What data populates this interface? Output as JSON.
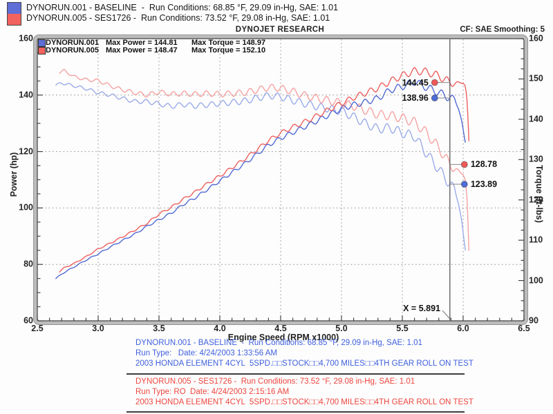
{
  "header": {
    "runs": [
      {
        "swatch_color": "#5e6ed6",
        "label": "DYNORUN.001 - BASELINE  -  Run Conditions: 68.85 °F, 29.09 in-Hg, SAE: 1.01"
      },
      {
        "swatch_color": "#f2625e",
        "label": "DYNORUN.005 - SES1726 -  Run Conditions: 73.52 °F, 29.08 in-Hg, SAE: 1.01"
      }
    ],
    "brand": "DYNOJET RESEARCH",
    "correction": "CF: SAE  Smoothing: 5"
  },
  "chart_data": {
    "type": "line",
    "title": "DYNOJET RESEARCH",
    "x_axis": {
      "label": "Engine Speed (RPM x1000)",
      "min": 2.5,
      "max": 6.5,
      "ticks": [
        "2.5",
        "3.0",
        "3.5",
        "4.0",
        "4.5",
        "5.0",
        "5.5",
        "6.0",
        "6.5"
      ],
      "minor_step": 0.1,
      "grid_step": 0.5
    },
    "y_left": {
      "label": "Power (hp)",
      "min": 60,
      "max": 160,
      "ticks": [
        "160",
        "140",
        "120",
        "100",
        "80",
        "60"
      ],
      "minor_step": 5,
      "grid_values": [
        140,
        120,
        100,
        80
      ]
    },
    "y_right": {
      "label": "Torque (ft-lbs)",
      "min": 90,
      "max": 160,
      "ticks": [
        "160",
        "150",
        "140",
        "130",
        "120",
        "110",
        "100",
        "90"
      ],
      "minor_step": 2.5
    },
    "legend": {
      "rows": [
        {
          "run": "DYNORUN.001",
          "max_power": "Max Power = 144.81",
          "max_torque": "Max Torque = 148.97",
          "swatch_color": "#5e6ed6"
        },
        {
          "run": "DYNORUN.005",
          "max_power": "Max Power = 148.47",
          "max_torque": "Max Torque = 152.10",
          "swatch_color": "#f2625e"
        }
      ]
    },
    "cursor": {
      "rpm": 5.891,
      "label": "X = 5.891"
    },
    "cursor_readouts": [
      {
        "label": "144.45",
        "value": 144.45,
        "axis": "power",
        "run": "DYNORUN.005",
        "color": "#ee5a5a",
        "side": "left"
      },
      {
        "label": "138.96",
        "value": 138.96,
        "axis": "power",
        "run": "DYNORUN.001",
        "color": "#4f6cd6",
        "side": "left"
      },
      {
        "label": "128.78",
        "value": 128.78,
        "axis": "torque",
        "run": "DYNORUN.005",
        "color": "#ee5a5a",
        "side": "right"
      },
      {
        "label": "123.89",
        "value": 123.89,
        "axis": "torque",
        "run": "DYNORUN.001",
        "color": "#4f6cd6",
        "side": "right"
      }
    ],
    "series": [
      {
        "id": "torque_baseline",
        "run": "DYNORUN.001",
        "quantity": "torque",
        "axis": "right",
        "color": "#9aabe8",
        "points": [
          [
            2.65,
            148.4
          ],
          [
            2.7,
            149.0
          ],
          [
            2.8,
            148.3
          ],
          [
            2.9,
            147.6
          ],
          [
            3.0,
            146.6
          ],
          [
            3.1,
            146.0
          ],
          [
            3.2,
            145.2
          ],
          [
            3.3,
            144.4
          ],
          [
            3.4,
            144.4
          ],
          [
            3.5,
            143.8
          ],
          [
            3.6,
            143.2
          ],
          [
            3.7,
            143.7
          ],
          [
            3.8,
            143.3
          ],
          [
            3.9,
            143.6
          ],
          [
            4.0,
            143.9
          ],
          [
            4.1,
            144.2
          ],
          [
            4.2,
            144.5
          ],
          [
            4.3,
            145.2
          ],
          [
            4.4,
            145.9
          ],
          [
            4.5,
            145.6
          ],
          [
            4.6,
            144.7
          ],
          [
            4.7,
            143.9
          ],
          [
            4.8,
            143.2
          ],
          [
            4.9,
            142.6
          ],
          [
            5.0,
            142.0
          ],
          [
            5.1,
            140.6
          ],
          [
            5.2,
            138.9
          ],
          [
            5.3,
            137.6
          ],
          [
            5.4,
            137.9
          ],
          [
            5.5,
            136.6
          ],
          [
            5.6,
            135.8
          ],
          [
            5.7,
            131.5
          ],
          [
            5.8,
            127.6
          ],
          [
            5.891,
            123.89
          ],
          [
            5.93,
            122.6
          ],
          [
            5.96,
            119.8
          ],
          [
            5.99,
            114.5
          ],
          [
            6.005,
            110.5
          ],
          [
            6.02,
            107.0
          ]
        ]
      },
      {
        "id": "torque_ses1726",
        "run": "DYNORUN.005",
        "quantity": "torque",
        "axis": "right",
        "color": "#f6a2a2",
        "points": [
          [
            2.68,
            151.6
          ],
          [
            2.72,
            152.1
          ],
          [
            2.8,
            150.6
          ],
          [
            2.9,
            149.8
          ],
          [
            3.0,
            149.6
          ],
          [
            3.1,
            148.3
          ],
          [
            3.2,
            147.3
          ],
          [
            3.3,
            146.6
          ],
          [
            3.4,
            146.0
          ],
          [
            3.5,
            146.8
          ],
          [
            3.6,
            146.2
          ],
          [
            3.7,
            146.4
          ],
          [
            3.8,
            146.2
          ],
          [
            3.9,
            146.4
          ],
          [
            4.0,
            146.2
          ],
          [
            4.1,
            146.4
          ],
          [
            4.2,
            146.6
          ],
          [
            4.3,
            147.2
          ],
          [
            4.4,
            147.9
          ],
          [
            4.5,
            147.7
          ],
          [
            4.6,
            146.9
          ],
          [
            4.7,
            145.9
          ],
          [
            4.8,
            145.2
          ],
          [
            4.9,
            144.6
          ],
          [
            5.0,
            144.0
          ],
          [
            5.1,
            143.3
          ],
          [
            5.2,
            142.2
          ],
          [
            5.3,
            141.2
          ],
          [
            5.4,
            140.9
          ],
          [
            5.5,
            140.3
          ],
          [
            5.6,
            139.3
          ],
          [
            5.7,
            136.6
          ],
          [
            5.8,
            132.9
          ],
          [
            5.891,
            128.78
          ],
          [
            5.95,
            127.2
          ],
          [
            6.0,
            126.3
          ],
          [
            6.02,
            124.8
          ],
          [
            6.033,
            120.0
          ],
          [
            6.042,
            113.0
          ],
          [
            6.05,
            105.5
          ],
          [
            6.055,
            99.8
          ]
        ]
      },
      {
        "id": "power_baseline",
        "run": "DYNORUN.001",
        "quantity": "power",
        "axis": "left",
        "color": "#5069d2",
        "derived": "power_hp = torque_ftlbs * rpm_x1000 / 5.252"
      },
      {
        "id": "power_ses1726",
        "run": "DYNORUN.005",
        "quantity": "power",
        "axis": "left",
        "color": "#ee5f5f",
        "derived": "power_hp = torque_ftlbs * rpm_x1000 / 5.252"
      }
    ],
    "noise": {
      "period_rpm": 0.09,
      "amp_base": 0.3,
      "amp_per_rpm": 0.3,
      "phase": {
        "DYNORUN.001": -2.85,
        "DYNORUN.005": 0.2915
      }
    }
  },
  "footer": {
    "runs": [
      {
        "color": "#3e5fdd",
        "lines": [
          "DYNORUN.001 - BASELINE  -  Run Conditions: 68.85 °F, 29.09 in-Hg, SAE: 1.01",
          "Run Type:   Date: 4/24/2003 1:33:56 AM",
          "2003 HONDA ELEMENT 4CYL  5SPD.□□STOCK□□4,700 MILES□□4TH GEAR ROLL ON TEST"
        ]
      },
      {
        "color": "#ee453e",
        "lines": [
          "DYNORUN.005 - SES1726 -  Run Conditions: 73.52 °F, 29.08 in-Hg, SAE: 1.01",
          "Run Type: RO  Date: 4/24/2003 2:15:16 AM",
          "2003 HONDA ELEMENT 4CYL  5SPD.□□STOCK□□4,700 MILES□□4TH GEAR ROLL ON TEST"
        ]
      }
    ]
  }
}
